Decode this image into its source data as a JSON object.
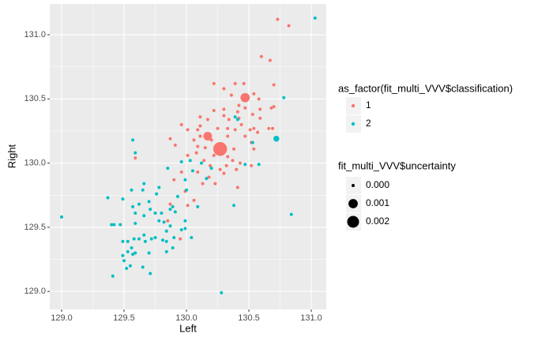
{
  "chart_data": {
    "type": "scatter",
    "xlabel": "Left",
    "ylabel": "Right",
    "xlim": [
      128.905,
      131.12
    ],
    "ylim": [
      128.86,
      131.24
    ],
    "xticks": [
      {
        "value": 129,
        "label": "129.0"
      },
      {
        "value": 129.5,
        "label": "129.5"
      },
      {
        "value": 130,
        "label": "130.0"
      },
      {
        "value": 130.5,
        "label": "130.5"
      },
      {
        "value": 131,
        "label": "131.0"
      }
    ],
    "yticks": [
      {
        "value": 129,
        "label": "129.0"
      },
      {
        "value": 129.5,
        "label": "129.5"
      },
      {
        "value": 130,
        "label": "130.0"
      },
      {
        "value": 130.5,
        "label": "130.5"
      },
      {
        "value": 131,
        "label": "131.0"
      }
    ],
    "grid": true,
    "legend_title": "as_factor(fit_multi_VVV$classification)",
    "size_legend": {
      "title": "fit_multi_VVV$uncertainty",
      "values": [
        {
          "value": 0,
          "label": "0.000"
        },
        {
          "value": 0.001,
          "label": "0.001"
        },
        {
          "value": 0.002,
          "label": "0.002"
        }
      ]
    },
    "series": [
      {
        "name": "1",
        "color": "#F8766D",
        "x": [
          130.73,
          130.82,
          130.6,
          130.67,
          130.39,
          130.46,
          130.22,
          130.3,
          130.7,
          130.36,
          130.54,
          130.58,
          130.68,
          130.7,
          130.59,
          130.42,
          130.47,
          130.3,
          130.22,
          130.41,
          130.3,
          130.11,
          130.17,
          130.34,
          130.42,
          130.44,
          130.53,
          130.59,
          130.11,
          130.09,
          130.25,
          130.33,
          130.39,
          130.51,
          130.54,
          130.66,
          130.69,
          129.96,
          130.01,
          130.11,
          130.06,
          130.2,
          130.33,
          130.47,
          130.57,
          129.87,
          129.91,
          130.09,
          130.15,
          130.3,
          130.38,
          130.52,
          130.54,
          130.08,
          130.22,
          130.33,
          130.37,
          130.43,
          129.59,
          130.01,
          130.14,
          130.19,
          130.27,
          130.32,
          130.4,
          130.18,
          130.23,
          130.3,
          130.52,
          130.09,
          129.95,
          130.06,
          130.41,
          129.85,
          129.87,
          130.01,
          129.99,
          129.9,
          129.96,
          130.13,
          130.47,
          130.17,
          130.27
        ],
        "values": [
          131.12,
          131.07,
          130.83,
          130.8,
          130.62,
          130.62,
          130.62,
          130.58,
          130.61,
          130.53,
          130.54,
          130.5,
          130.43,
          130.44,
          130.42,
          130.45,
          130.43,
          130.42,
          130.41,
          130.4,
          130.37,
          130.36,
          130.34,
          130.34,
          130.35,
          130.3,
          130.38,
          130.35,
          130.29,
          130.26,
          130.27,
          130.27,
          130.26,
          130.26,
          130.27,
          130.27,
          130.27,
          130.3,
          130.26,
          130.21,
          130.18,
          130.18,
          130.21,
          130.21,
          130.24,
          130.19,
          130.14,
          130.13,
          130.12,
          130.13,
          130.11,
          130.16,
          130.11,
          130.08,
          130.06,
          130.05,
          130.02,
          130.0,
          130.04,
          130.06,
          130.02,
          129.98,
          129.95,
          129.98,
          129.95,
          129.89,
          129.84,
          129.92,
          129.98,
          129.93,
          129.41,
          129.71,
          129.81,
          129.55,
          129.68,
          129.67,
          129.78,
          129.87,
          129.93,
          129.84,
          130.51,
          130.21,
          130.11
        ],
        "sizes": [
          0,
          0,
          0,
          0,
          0,
          0,
          0,
          0,
          0,
          0,
          0,
          0,
          0,
          0,
          0,
          0,
          0,
          0,
          0,
          0,
          0,
          0,
          0,
          0,
          0,
          0,
          0,
          0,
          0,
          0,
          0,
          0,
          0,
          0,
          0,
          0,
          0,
          0,
          0,
          0,
          0,
          0,
          0,
          0,
          0,
          0,
          0,
          0,
          0,
          0,
          0,
          0,
          0,
          0,
          0,
          0,
          0,
          0,
          0,
          0,
          0,
          0,
          0,
          0,
          0,
          0,
          0,
          0,
          0,
          0,
          0,
          0,
          0,
          0,
          0,
          0,
          0,
          0,
          0,
          0,
          0.001,
          0.0008,
          0.003
        ]
      },
      {
        "name": "2",
        "color": "#00BFC4",
        "x": [
          131.03,
          130.78,
          130.72,
          130.39,
          130.41,
          130.53,
          130.47,
          130.58,
          130.12,
          130.16,
          130.0,
          129.99,
          130.05,
          130.03,
          129.57,
          129.59,
          129.96,
          129.85,
          129.78,
          129.76,
          129.7,
          129.65,
          129.66,
          129.56,
          129.37,
          129.49,
          129.62,
          129.57,
          129.59,
          129.71,
          129.87,
          129.89,
          129.91,
          129.8,
          129.75,
          129.66,
          129.78,
          129.82,
          129.87,
          129.84,
          129.75,
          129.9,
          129.99,
          130.04,
          129.99,
          129.72,
          129.81,
          129.84,
          129.66,
          129.58,
          129.59,
          129.47,
          129.42,
          129.4,
          129.62,
          129.67,
          129.53,
          129.49,
          129.56,
          129.53,
          129.57,
          129.49,
          129.59,
          129.7,
          129.84,
          129.89,
          129.5,
          129.55,
          129.65,
          129.52,
          129.71,
          129.41,
          130.28,
          129.0,
          130.84,
          130.38,
          129.96,
          130.09,
          129.93,
          130.2
        ],
        "values": [
          131.13,
          130.51,
          130.19,
          130.36,
          130.34,
          130.16,
          129.99,
          129.99,
          130.0,
          129.88,
          129.79,
          129.87,
          129.94,
          130.02,
          130.18,
          130.08,
          130.01,
          129.96,
          129.81,
          129.76,
          129.7,
          129.79,
          129.84,
          129.79,
          129.73,
          129.72,
          129.68,
          129.66,
          129.61,
          129.64,
          129.64,
          129.66,
          129.62,
          129.61,
          129.61,
          129.59,
          129.55,
          129.54,
          129.51,
          129.47,
          129.42,
          129.42,
          129.49,
          129.42,
          129.55,
          129.41,
          129.4,
          129.39,
          129.44,
          129.41,
          129.53,
          129.52,
          129.52,
          129.52,
          129.41,
          129.39,
          129.39,
          129.39,
          129.34,
          129.31,
          129.29,
          129.28,
          129.3,
          129.3,
          129.31,
          129.34,
          129.24,
          129.2,
          129.19,
          129.18,
          129.14,
          129.12,
          128.99,
          129.58,
          129.6,
          129.67,
          129.48,
          129.66,
          129.74,
          129.96
        ],
        "sizes": [
          0,
          0,
          0.0002,
          0,
          0,
          0,
          0,
          0,
          0,
          0,
          0,
          0,
          0,
          0,
          0,
          0,
          0,
          0,
          0,
          0,
          0,
          0,
          0,
          0,
          0,
          0,
          0,
          0,
          0,
          0,
          0,
          0,
          0,
          0,
          0,
          0,
          0,
          0,
          0,
          0,
          0,
          0,
          0,
          0,
          0,
          0,
          0,
          0,
          0,
          0,
          0,
          0,
          0,
          0,
          0,
          0,
          0,
          0,
          0,
          0,
          0,
          0,
          0,
          0,
          0,
          0,
          0,
          0,
          0,
          0,
          0,
          0,
          0,
          0,
          0,
          0,
          0,
          0,
          0,
          0
        ]
      }
    ]
  }
}
